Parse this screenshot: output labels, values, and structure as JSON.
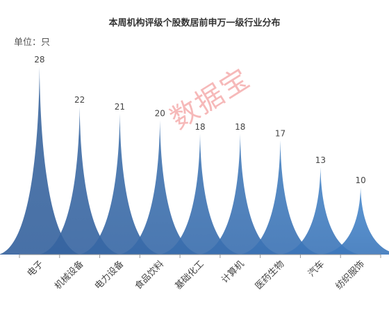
{
  "chart_data": {
    "type": "bar",
    "title": "本周机构评级个股数居前申万一级行业分布",
    "unit_label": "单位：只",
    "watermark": "数据宝",
    "categories": [
      "电子",
      "机械设备",
      "电力设备",
      "食品饮料",
      "基础化工",
      "计算机",
      "医药生物",
      "汽车",
      "纺织服饰"
    ],
    "values": [
      28,
      22,
      21,
      20,
      18,
      18,
      17,
      13,
      10
    ],
    "ylim": [
      0,
      28
    ],
    "grid": false,
    "legend": "none",
    "colors": {
      "dark": "#3f6aa0",
      "light": "#4b8ccf",
      "overlap": "#1f4f96",
      "axis": "#999999",
      "label": "#444444"
    }
  }
}
